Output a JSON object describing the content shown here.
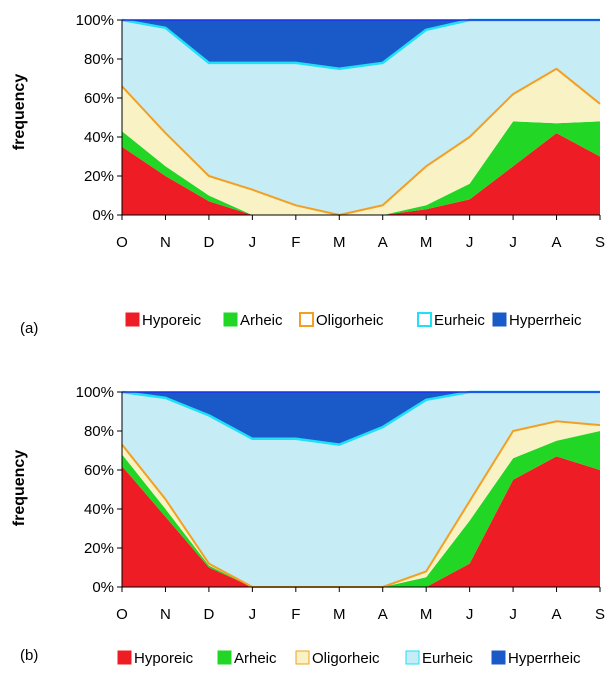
{
  "colors": {
    "Hyporeic": "#ee1c24",
    "Arheic": "#22d626",
    "Oligorheic": "#f8f2c4",
    "Oligorheic_border": "#f2a024",
    "Eurheic": "#c6ecf6",
    "Eurheic_border": "#1ee0f8",
    "Hyperrheic": "#1a5ac8",
    "Hyperrheic_border": "#1a2ee6"
  },
  "chart_data": [
    {
      "panel": "(a)",
      "type": "area",
      "stacked": true,
      "xlabel": "",
      "ylabel": "frequency",
      "ylim": [
        0,
        100
      ],
      "yticks": [
        "0%",
        "20%",
        "40%",
        "60%",
        "80%",
        "100%"
      ],
      "categories": [
        "O",
        "N",
        "D",
        "J",
        "F",
        "M",
        "A",
        "M",
        "J",
        "J",
        "A",
        "S"
      ],
      "legend_position": "bottom",
      "series": [
        {
          "name": "Hyporeic",
          "values": [
            35,
            20,
            7,
            0,
            0,
            0,
            0,
            3,
            8,
            25,
            42,
            30
          ]
        },
        {
          "name": "Arheic",
          "values": [
            8,
            5,
            3,
            0,
            0,
            0,
            0,
            2,
            8,
            23,
            5,
            18
          ]
        },
        {
          "name": "Oligorheic",
          "values": [
            23,
            17,
            10,
            13,
            5,
            0,
            5,
            20,
            24,
            14,
            28,
            9
          ]
        },
        {
          "name": "Eurheic",
          "values": [
            34,
            54,
            58,
            65,
            73,
            75,
            73,
            70,
            60,
            38,
            25,
            43
          ]
        },
        {
          "name": "Hyperrheic",
          "values": [
            0,
            4,
            22,
            22,
            22,
            25,
            22,
            5,
            0,
            0,
            0,
            0
          ]
        }
      ]
    },
    {
      "panel": "(b)",
      "type": "area",
      "stacked": true,
      "xlabel": "",
      "ylabel": "frequency",
      "ylim": [
        0,
        100
      ],
      "yticks": [
        "0%",
        "20%",
        "40%",
        "60%",
        "80%",
        "100%"
      ],
      "categories": [
        "O",
        "N",
        "D",
        "J",
        "F",
        "M",
        "A",
        "M",
        "J",
        "J",
        "A",
        "S"
      ],
      "legend_position": "bottom",
      "series": [
        {
          "name": "Hyporeic",
          "values": [
            62,
            36,
            10,
            0,
            0,
            0,
            0,
            0,
            12,
            55,
            67,
            60
          ]
        },
        {
          "name": "Arheic",
          "values": [
            6,
            4,
            1,
            0,
            0,
            0,
            0,
            5,
            22,
            11,
            8,
            20
          ]
        },
        {
          "name": "Oligorheic",
          "values": [
            5,
            5,
            1,
            0,
            0,
            0,
            0,
            3,
            10,
            14,
            10,
            3
          ]
        },
        {
          "name": "Eurheic",
          "values": [
            27,
            52,
            76,
            76,
            76,
            73,
            82,
            88,
            56,
            20,
            15,
            17
          ]
        },
        {
          "name": "Hyperrheic",
          "values": [
            0,
            3,
            12,
            24,
            24,
            27,
            18,
            4,
            0,
            0,
            0,
            0
          ]
        }
      ]
    }
  ]
}
